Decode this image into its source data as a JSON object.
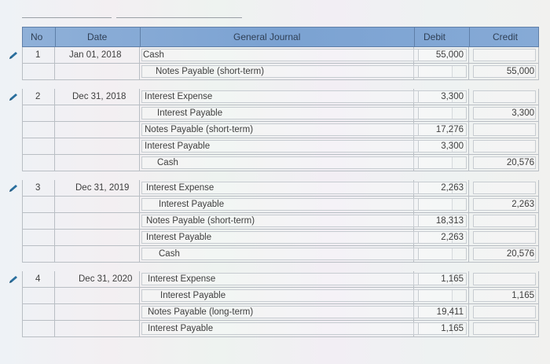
{
  "header": {
    "no": "No",
    "date": "Date",
    "journal": "General Journal",
    "debit": "Debit",
    "credit": "Credit"
  },
  "entries": [
    {
      "no": "1",
      "date": "Jan 01, 2018",
      "lines": [
        {
          "account": "Cash",
          "debit": "55,000",
          "credit": ""
        },
        {
          "account": "Notes Payable (short-term)",
          "debit": "",
          "credit": "55,000"
        }
      ]
    },
    {
      "no": "2",
      "date": "Dec 31, 2018",
      "lines": [
        {
          "account": "Interest Expense",
          "debit": "3,300",
          "credit": ""
        },
        {
          "account": "Interest Payable",
          "debit": "",
          "credit": "3,300"
        },
        {
          "account": "Notes Payable (short-term)",
          "debit": "17,276",
          "credit": ""
        },
        {
          "account": "Interest Payable",
          "debit": "3,300",
          "credit": ""
        },
        {
          "account": "Cash",
          "debit": "",
          "credit": "20,576"
        }
      ]
    },
    {
      "no": "3",
      "date": "Dec 31, 2019",
      "lines": [
        {
          "account": "Interest Expense",
          "debit": "2,263",
          "credit": ""
        },
        {
          "account": "Interest Payable",
          "debit": "",
          "credit": "2,263"
        },
        {
          "account": "Notes Payable (short-term)",
          "debit": "18,313",
          "credit": ""
        },
        {
          "account": "Interest Payable",
          "debit": "2,263",
          "credit": ""
        },
        {
          "account": "Cash",
          "debit": "",
          "credit": "20,576"
        }
      ]
    },
    {
      "no": "4",
      "date": "Dec 31, 2020",
      "lines": [
        {
          "account": "Interest Expense",
          "debit": "1,165",
          "credit": ""
        },
        {
          "account": "Interest Payable",
          "debit": "",
          "credit": "1,165"
        },
        {
          "account": "Notes Payable (long-term)",
          "debit": "19,411",
          "credit": ""
        },
        {
          "account": "Interest Payable",
          "debit": "1,165",
          "credit": ""
        }
      ]
    }
  ],
  "icons": {
    "edit": "pencil-icon"
  },
  "colors": {
    "header_bg": "#7ba2d2",
    "pencil": "#2a6f9e"
  }
}
